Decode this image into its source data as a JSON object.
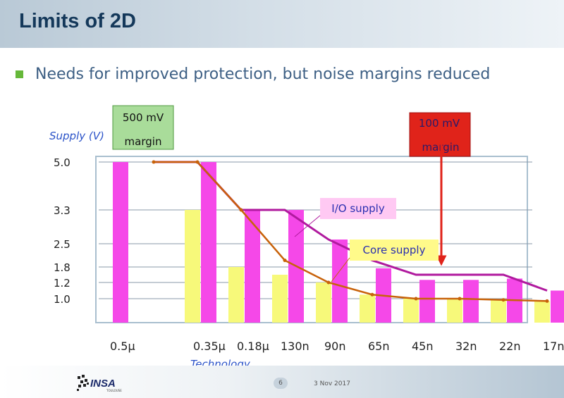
{
  "slide": {
    "title": "Limits of 2D",
    "bullet": "Needs for improved protection, but noise margins reduced",
    "page_number": "6",
    "date": "3 Nov 2017",
    "logo_text": "INSA",
    "logo_subtext": "TOULOUSE"
  },
  "colors": {
    "io_bar": "#f548e8",
    "core_bar": "#f7f97a",
    "io_line": "#b01a9e",
    "core_line": "#c8620a",
    "gridline": "#8a9aa8",
    "frame": "#a9bfcf",
    "callout_500": "#a9dc9a",
    "callout_100": "#e0231a",
    "io_label_bg": "#ffc9f3",
    "core_label_bg": "#fffa8a"
  },
  "chart_data": {
    "type": "bar",
    "ylabel": "Supply (V)",
    "xlabel": "Technology",
    "categories": [
      "0.5µ",
      "0.35µ",
      "0.18µ",
      "130n",
      "90n",
      "65n",
      "45n",
      "32n",
      "22n",
      "17n"
    ],
    "y_ticks": [
      "5.0",
      "3.3",
      "2.5",
      "1.8",
      "1.2",
      "1.0"
    ],
    "y_tick_values": [
      5.0,
      3.3,
      2.5,
      1.8,
      1.2,
      1.0
    ],
    "series": [
      {
        "name": "Core supply",
        "values": [
          null,
          3.3,
          1.8,
          1.5,
          1.2,
          1.05,
          1.0,
          1.0,
          0.95,
          0.9
        ]
      },
      {
        "name": "I/O supply",
        "values": [
          5.0,
          5.0,
          3.3,
          3.3,
          2.6,
          1.75,
          1.3,
          1.3,
          1.35,
          1.1
        ]
      }
    ],
    "io_trend": [
      5.0,
      5.0,
      3.3,
      3.3,
      2.6,
      2.0,
      1.5,
      1.5,
      1.5,
      1.1
    ],
    "core_trend": [
      5.0,
      5.0,
      3.3,
      2.0,
      1.2,
      1.05,
      1.0,
      1.0,
      0.95,
      0.9
    ],
    "annotations": {
      "margin_500": [
        "500 mV",
        "margin"
      ],
      "margin_100": [
        "100 mV",
        "margin"
      ],
      "io_label": "I/O supply",
      "core_label": "Core supply"
    },
    "grid": true
  }
}
